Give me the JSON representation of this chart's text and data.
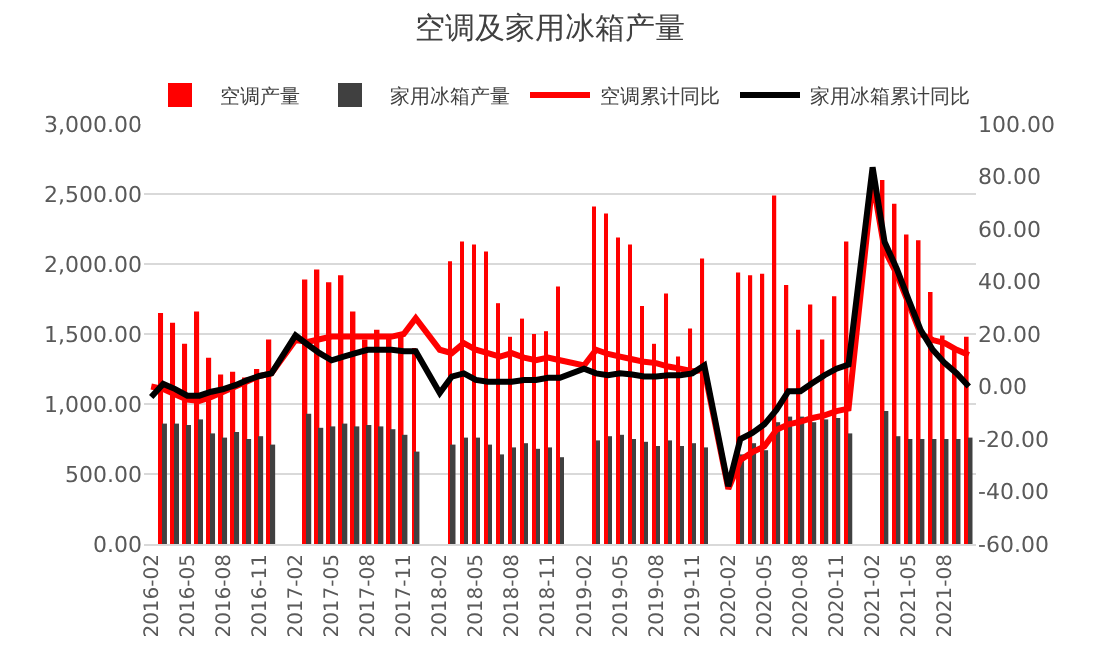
{
  "chart_data": {
    "type": "bar",
    "title": "空调及家用冰箱产量",
    "categories": [
      "2016-02",
      null,
      null,
      "2016-05",
      null,
      null,
      "2016-08",
      null,
      null,
      "2016-11",
      null,
      null,
      "2017-02",
      null,
      null,
      "2017-05",
      null,
      null,
      "2017-08",
      null,
      null,
      "2017-11",
      null,
      null,
      "2018-02",
      null,
      null,
      "2018-05",
      null,
      null,
      "2018-08",
      null,
      null,
      "2018-11",
      null,
      null,
      "2019-02",
      null,
      null,
      "2019-05",
      null,
      null,
      "2019-08",
      null,
      null,
      "2019-11",
      null,
      null,
      "2020-02",
      null,
      null,
      "2020-05",
      null,
      null,
      "2020-08",
      null,
      null,
      "2020-11",
      null,
      null,
      "2021-02",
      null,
      null,
      "2021-05",
      null,
      null,
      "2021-08",
      null,
      null
    ],
    "series": [
      {
        "name": "空调产量",
        "color": "#ff0000",
        "values": [
          null,
          1650,
          1580,
          1430,
          1660,
          1330,
          1210,
          1230,
          1190,
          1250,
          1460,
          null,
          null,
          1890,
          1960,
          1870,
          1920,
          1660,
          1460,
          1530,
          1500,
          1480,
          1400,
          null,
          null,
          2020,
          2160,
          2140,
          2090,
          1720,
          1480,
          1610,
          1500,
          1520,
          1840,
          null,
          null,
          2410,
          2360,
          2190,
          2140,
          1700,
          1430,
          1790,
          1340,
          1540,
          2040,
          null,
          null,
          1940,
          1920,
          1930,
          2490,
          1850,
          1530,
          1710,
          1460,
          1770,
          2160,
          null,
          null,
          2600,
          2430,
          2210,
          2170,
          1800,
          1490,
          1390,
          1480
        ]
      },
      {
        "name": "家用冰箱产量",
        "color": "#404040",
        "values": [
          null,
          860,
          860,
          850,
          890,
          790,
          760,
          800,
          750,
          770,
          710,
          null,
          null,
          930,
          830,
          840,
          860,
          840,
          850,
          840,
          820,
          780,
          660,
          null,
          null,
          710,
          760,
          760,
          710,
          640,
          690,
          720,
          680,
          690,
          620,
          null,
          null,
          740,
          770,
          780,
          750,
          730,
          700,
          740,
          700,
          720,
          690,
          null,
          null,
          640,
          720,
          670,
          870,
          910,
          910,
          870,
          890,
          900,
          790,
          null,
          null,
          950,
          770,
          750,
          750,
          750,
          750,
          750,
          760
        ]
      },
      {
        "name": "空调累计同比",
        "type": "line",
        "axis": "y2",
        "color": "#ff0000",
        "values": [
          0,
          -1,
          -3,
          -5,
          -5.5,
          -4,
          -2,
          0,
          2,
          4,
          5,
          null,
          17.7,
          17,
          18,
          19,
          19,
          19,
          19,
          19,
          19,
          20,
          26,
          null,
          14,
          12.7,
          16.5,
          14,
          12.7,
          11.4,
          12.7,
          11,
          10,
          11,
          10,
          null,
          8,
          14,
          12.4,
          11.4,
          10.4,
          9.4,
          8.9,
          7.6,
          6.8,
          5.8,
          6.3,
          null,
          -39,
          -28,
          -25,
          -22.8,
          -16.5,
          -14.4,
          -13.4,
          -12,
          -11,
          -9.4,
          -8.4,
          null,
          78.5,
          52,
          43,
          31.6,
          20,
          17.7,
          16.5,
          14,
          12
        ]
      },
      {
        "name": "家用冰箱累计同比",
        "type": "line",
        "axis": "y2",
        "color": "#000000",
        "values": [
          -4,
          1,
          -1,
          -3.5,
          -3.5,
          -2,
          -1,
          0.5,
          2.5,
          4,
          5,
          null,
          19.5,
          16,
          12.7,
          10,
          11.4,
          12.7,
          14,
          14,
          14,
          13.4,
          13.4,
          null,
          -2.5,
          3.8,
          5,
          2.5,
          1.8,
          1.8,
          1.8,
          2.5,
          2.5,
          3.3,
          3.3,
          null,
          6.8,
          5,
          4.3,
          5,
          4.6,
          3.8,
          3.8,
          4.3,
          4.3,
          5,
          8,
          null,
          -38,
          -20,
          -17.7,
          -14.4,
          -8.9,
          -1.8,
          -1.8,
          1.3,
          4.3,
          6.8,
          8.4,
          null,
          83.5,
          55,
          45,
          33,
          21.5,
          14,
          8.9,
          5,
          0
        ]
      }
    ],
    "ylim": [
      0,
      3000
    ],
    "yticks": [
      {
        "value": 0,
        "label": "0.00"
      },
      {
        "value": 500,
        "label": "500.00"
      },
      {
        "value": 1000,
        "label": "1,000.00"
      },
      {
        "value": 1500,
        "label": "1,500.00"
      },
      {
        "value": 2000,
        "label": "2,000.00"
      },
      {
        "value": 2500,
        "label": "2,500.00"
      },
      {
        "value": 3000,
        "label": "3,000.00"
      }
    ],
    "y2lim": [
      -60,
      100
    ],
    "y2ticks": [
      {
        "value": -60,
        "label": "-60.00"
      },
      {
        "value": -40,
        "label": "-40.00"
      },
      {
        "value": -20,
        "label": "-20.00"
      },
      {
        "value": 0,
        "label": "0.00"
      },
      {
        "value": 20,
        "label": "20.00"
      },
      {
        "value": 40,
        "label": "40.00"
      },
      {
        "value": 60,
        "label": "60.00"
      },
      {
        "value": 80,
        "label": "80.00"
      },
      {
        "value": 100,
        "label": "100.00"
      }
    ],
    "grid": "y",
    "legend": "top",
    "marker": "none",
    "line_style": "solid"
  }
}
